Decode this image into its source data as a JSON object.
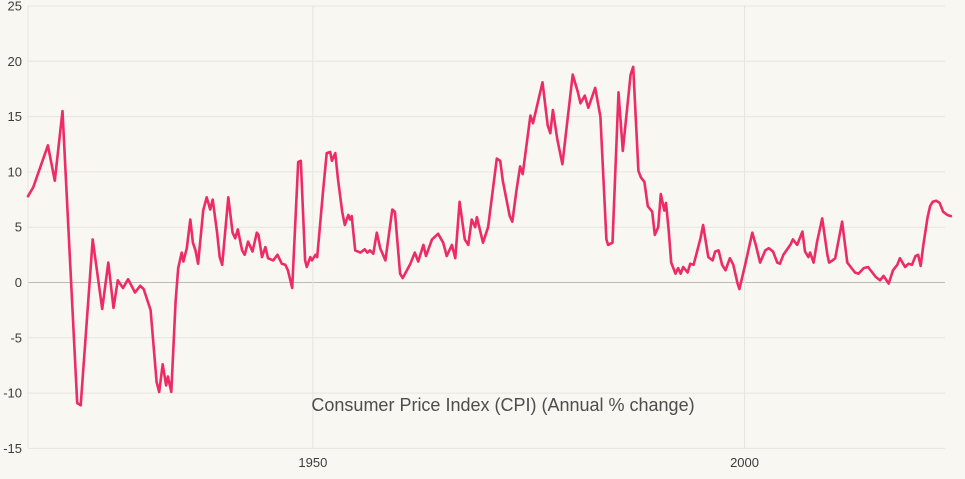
{
  "page": {
    "background_color": "#f8f7f1"
  },
  "colors": {
    "background": "#f8f7f1",
    "gridline": "#e6e5df",
    "zero_gridline": "#bcbbb5",
    "tick_text": "#3c3c3c",
    "title_text": "#4d4d4d",
    "series_line": "#ed2b67"
  },
  "chart_data": {
    "type": "line",
    "title": "Consumer Price Index (CPI) (Annual % change)",
    "legend": "none",
    "grid": {
      "horizontal": true,
      "vertical": true,
      "zero_line_emphasized": true
    },
    "x_axis": {
      "tick_labels": [
        "1950",
        "2000"
      ],
      "tick_years": [
        1950,
        2000
      ],
      "left_boundary_year": 1917,
      "range_years": [
        1917,
        2024
      ]
    },
    "y_axis": {
      "tick_values": [
        25,
        20,
        15,
        10,
        5,
        0,
        -5,
        -10,
        -15
      ],
      "unit": "% annual change",
      "range": [
        -15,
        25
      ]
    },
    "series": [
      {
        "name": "CPI (Annual % change)",
        "color": "#ed2b67",
        "points": [
          [
            1917.0,
            7.8
          ],
          [
            1917.6,
            8.6
          ],
          [
            1919.3,
            12.4
          ],
          [
            1920.1,
            9.2
          ],
          [
            1921.0,
            15.5
          ],
          [
            1922.7,
            -10.9
          ],
          [
            1923.1,
            -11.1
          ],
          [
            1924.5,
            3.9
          ],
          [
            1925.6,
            -2.4
          ],
          [
            1926.3,
            1.8
          ],
          [
            1926.9,
            -2.3
          ],
          [
            1927.4,
            0.2
          ],
          [
            1928.0,
            -0.5
          ],
          [
            1928.6,
            0.3
          ],
          [
            1929.4,
            -0.9
          ],
          [
            1930.0,
            -0.3
          ],
          [
            1930.4,
            -0.6
          ],
          [
            1931.2,
            -2.5
          ],
          [
            1931.9,
            -9.0
          ],
          [
            1932.2,
            -9.9
          ],
          [
            1932.6,
            -7.4
          ],
          [
            1933.0,
            -9.3
          ],
          [
            1933.2,
            -8.5
          ],
          [
            1933.6,
            -9.9
          ],
          [
            1934.1,
            -1.7
          ],
          [
            1934.4,
            1.3
          ],
          [
            1934.8,
            2.7
          ],
          [
            1935.0,
            1.9
          ],
          [
            1935.4,
            3.1
          ],
          [
            1935.8,
            5.7
          ],
          [
            1936.1,
            3.6
          ],
          [
            1936.4,
            2.9
          ],
          [
            1936.7,
            1.7
          ],
          [
            1937.3,
            6.5
          ],
          [
            1937.7,
            7.7
          ],
          [
            1938.1,
            6.6
          ],
          [
            1938.4,
            7.5
          ],
          [
            1938.9,
            4.5
          ],
          [
            1939.2,
            2.3
          ],
          [
            1939.5,
            1.6
          ],
          [
            1940.2,
            7.7
          ],
          [
            1940.7,
            4.5
          ],
          [
            1941.0,
            4.0
          ],
          [
            1941.3,
            4.8
          ],
          [
            1941.8,
            2.9
          ],
          [
            1942.1,
            2.5
          ],
          [
            1942.5,
            3.7
          ],
          [
            1943.0,
            2.8
          ],
          [
            1943.5,
            4.5
          ],
          [
            1943.7,
            4.3
          ],
          [
            1944.1,
            2.3
          ],
          [
            1944.5,
            3.2
          ],
          [
            1944.8,
            2.2
          ],
          [
            1945.4,
            2.0
          ],
          [
            1945.9,
            2.5
          ],
          [
            1946.4,
            1.7
          ],
          [
            1946.8,
            1.6
          ],
          [
            1947.1,
            1.1
          ],
          [
            1947.6,
            -0.5
          ],
          [
            1948.3,
            10.9
          ],
          [
            1948.6,
            11.0
          ],
          [
            1949.1,
            2.0
          ],
          [
            1949.3,
            1.4
          ],
          [
            1949.7,
            2.3
          ],
          [
            1949.9,
            2.0
          ],
          [
            1950.3,
            2.5
          ],
          [
            1950.5,
            2.3
          ],
          [
            1951.2,
            8.4
          ],
          [
            1951.6,
            11.7
          ],
          [
            1952.0,
            11.8
          ],
          [
            1952.2,
            11.0
          ],
          [
            1952.6,
            11.7
          ],
          [
            1952.9,
            9.4
          ],
          [
            1953.4,
            6.4
          ],
          [
            1953.7,
            5.2
          ],
          [
            1954.1,
            6.1
          ],
          [
            1954.3,
            5.7
          ],
          [
            1954.5,
            6.0
          ],
          [
            1954.9,
            2.9
          ],
          [
            1955.5,
            2.7
          ],
          [
            1956.0,
            3.0
          ],
          [
            1956.3,
            2.7
          ],
          [
            1956.6,
            2.9
          ],
          [
            1957.0,
            2.6
          ],
          [
            1957.4,
            4.5
          ],
          [
            1957.8,
            3.1
          ],
          [
            1958.4,
            2.0
          ],
          [
            1959.2,
            6.6
          ],
          [
            1959.5,
            6.4
          ],
          [
            1960.1,
            0.8
          ],
          [
            1960.4,
            0.4
          ],
          [
            1961.3,
            1.7
          ],
          [
            1961.8,
            2.7
          ],
          [
            1962.2,
            1.9
          ],
          [
            1962.8,
            3.4
          ],
          [
            1963.1,
            2.4
          ],
          [
            1963.8,
            3.9
          ],
          [
            1964.5,
            4.4
          ],
          [
            1965.1,
            3.6
          ],
          [
            1965.5,
            2.4
          ],
          [
            1966.1,
            3.4
          ],
          [
            1966.5,
            2.2
          ],
          [
            1967.0,
            7.3
          ],
          [
            1967.6,
            3.9
          ],
          [
            1968.0,
            3.4
          ],
          [
            1968.4,
            5.7
          ],
          [
            1968.8,
            5.0
          ],
          [
            1969.0,
            5.9
          ],
          [
            1969.7,
            3.6
          ],
          [
            1970.3,
            5.0
          ],
          [
            1971.3,
            11.2
          ],
          [
            1971.7,
            11.0
          ],
          [
            1972.0,
            9.2
          ],
          [
            1972.8,
            6.0
          ],
          [
            1973.1,
            5.5
          ],
          [
            1973.6,
            8.4
          ],
          [
            1974.0,
            10.5
          ],
          [
            1974.3,
            9.8
          ],
          [
            1975.2,
            15.1
          ],
          [
            1975.5,
            14.4
          ],
          [
            1976.6,
            18.1
          ],
          [
            1977.2,
            14.2
          ],
          [
            1977.5,
            13.5
          ],
          [
            1977.8,
            15.6
          ],
          [
            1978.3,
            13.0
          ],
          [
            1978.9,
            10.7
          ],
          [
            1980.1,
            18.8
          ],
          [
            1980.7,
            17.2
          ],
          [
            1981.0,
            16.2
          ],
          [
            1981.5,
            16.9
          ],
          [
            1981.9,
            15.8
          ],
          [
            1982.7,
            17.6
          ],
          [
            1983.3,
            15.0
          ],
          [
            1984.0,
            3.9
          ],
          [
            1984.2,
            3.4
          ],
          [
            1984.7,
            3.6
          ],
          [
            1985.4,
            17.2
          ],
          [
            1985.9,
            11.9
          ],
          [
            1986.8,
            18.8
          ],
          [
            1987.1,
            19.5
          ],
          [
            1987.7,
            10.1
          ],
          [
            1988.0,
            9.5
          ],
          [
            1988.4,
            9.1
          ],
          [
            1988.8,
            6.9
          ],
          [
            1989.3,
            6.4
          ],
          [
            1989.6,
            4.3
          ],
          [
            1990.0,
            5.0
          ],
          [
            1990.3,
            8.0
          ],
          [
            1990.7,
            6.5
          ],
          [
            1990.9,
            7.2
          ],
          [
            1991.2,
            4.8
          ],
          [
            1991.5,
            1.8
          ],
          [
            1992.0,
            0.8
          ],
          [
            1992.3,
            1.3
          ],
          [
            1992.6,
            0.8
          ],
          [
            1992.9,
            1.4
          ],
          [
            1993.4,
            0.9
          ],
          [
            1993.7,
            1.7
          ],
          [
            1994.1,
            1.6
          ],
          [
            1994.9,
            4.0
          ],
          [
            1995.2,
            5.2
          ],
          [
            1995.8,
            2.3
          ],
          [
            1996.3,
            2.0
          ],
          [
            1996.6,
            2.8
          ],
          [
            1997.0,
            2.9
          ],
          [
            1997.4,
            1.6
          ],
          [
            1997.8,
            1.1
          ],
          [
            1998.3,
            2.2
          ],
          [
            1998.7,
            1.6
          ],
          [
            1999.2,
            -0.1
          ],
          [
            1999.4,
            -0.6
          ],
          [
            2000.1,
            1.7
          ],
          [
            2000.9,
            4.5
          ],
          [
            2001.3,
            3.4
          ],
          [
            2001.8,
            1.8
          ],
          [
            2002.4,
            2.9
          ],
          [
            2002.8,
            3.1
          ],
          [
            2003.3,
            2.8
          ],
          [
            2003.8,
            1.8
          ],
          [
            2004.1,
            1.7
          ],
          [
            2004.5,
            2.5
          ],
          [
            2005.3,
            3.4
          ],
          [
            2005.6,
            3.9
          ],
          [
            2006.1,
            3.4
          ],
          [
            2006.7,
            4.6
          ],
          [
            2007.0,
            2.8
          ],
          [
            2007.4,
            2.3
          ],
          [
            2007.6,
            2.7
          ],
          [
            2008.0,
            1.8
          ],
          [
            2008.4,
            3.7
          ],
          [
            2009.0,
            5.8
          ],
          [
            2009.6,
            2.5
          ],
          [
            2009.8,
            1.8
          ],
          [
            2010.2,
            2.0
          ],
          [
            2010.5,
            2.2
          ],
          [
            2011.3,
            5.5
          ],
          [
            2011.9,
            1.8
          ],
          [
            2012.3,
            1.4
          ],
          [
            2012.8,
            0.9
          ],
          [
            2013.2,
            0.8
          ],
          [
            2013.8,
            1.3
          ],
          [
            2014.3,
            1.4
          ],
          [
            2015.2,
            0.5
          ],
          [
            2015.7,
            0.2
          ],
          [
            2016.1,
            0.6
          ],
          [
            2016.7,
            -0.1
          ],
          [
            2017.2,
            1.1
          ],
          [
            2017.7,
            1.6
          ],
          [
            2018.0,
            2.2
          ],
          [
            2018.6,
            1.4
          ],
          [
            2019.0,
            1.7
          ],
          [
            2019.4,
            1.6
          ],
          [
            2019.8,
            2.4
          ],
          [
            2020.1,
            2.5
          ],
          [
            2020.4,
            1.5
          ],
          [
            2020.7,
            3.3
          ],
          [
            2021.2,
            5.9
          ],
          [
            2021.5,
            6.9
          ],
          [
            2021.8,
            7.3
          ],
          [
            2022.2,
            7.4
          ],
          [
            2022.6,
            7.2
          ],
          [
            2023.0,
            6.4
          ],
          [
            2023.5,
            6.1
          ],
          [
            2023.9,
            6.0
          ]
        ]
      }
    ]
  }
}
